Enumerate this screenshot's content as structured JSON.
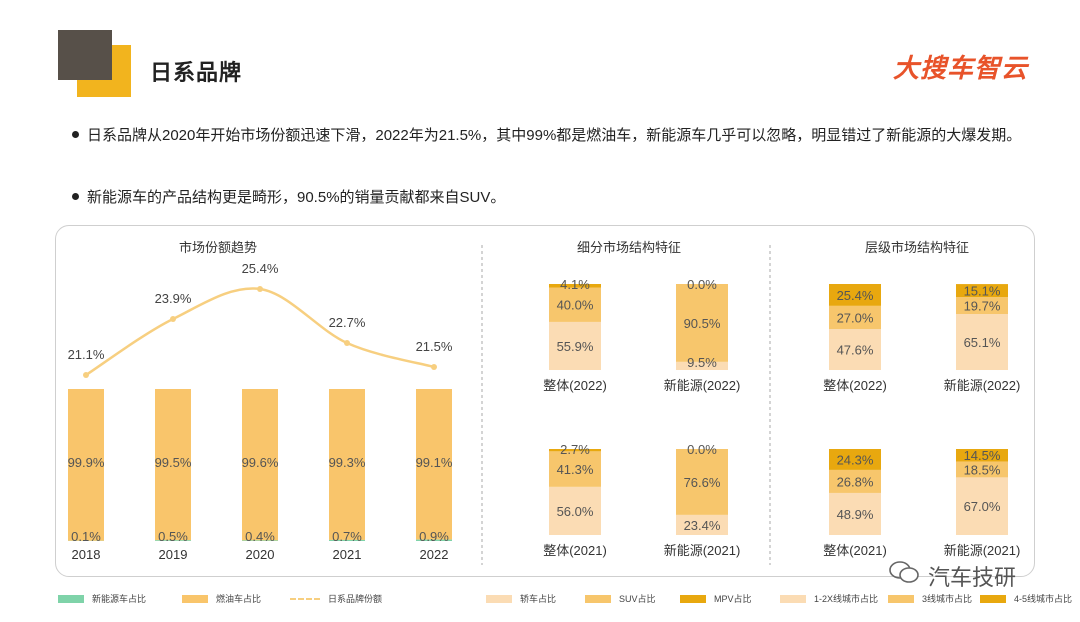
{
  "header": {
    "title": "日系品牌",
    "brand": "大搜车智云"
  },
  "bullets": [
    "日系品牌从2020年开始市场份额迅速下滑，2022年为21.5%，其中99%都是燃油车，新能源车几乎可以忽略，明显错过了新能源的大爆发期。",
    "新能源车的产品结构更是畸形，90.5%的销量贡献都来自SUV。"
  ],
  "colors": {
    "fuel": "#f9c56b",
    "nev": "#7fd3a9",
    "share_line": "#f7cf80",
    "sedan": "#fbdcb4",
    "suv": "#f7c66c",
    "mpv": "#e8a80f",
    "tier12": "#fbdcb4",
    "tier3": "#f7c66c",
    "tier45": "#e8a80f"
  },
  "chart_data": [
    {
      "type": "bar",
      "title": "市场份额趋势",
      "categories": [
        "2018",
        "2019",
        "2020",
        "2021",
        "2022"
      ],
      "series": [
        {
          "name": "新能源车占比",
          "values": [
            0.1,
            0.5,
            0.4,
            0.7,
            0.9
          ],
          "labels": [
            "0.1%",
            "0.5%",
            "0.4%",
            "0.7%",
            "0.9%"
          ]
        },
        {
          "name": "燃油车占比",
          "values": [
            99.9,
            99.5,
            99.6,
            99.3,
            99.1
          ],
          "labels": [
            "99.9%",
            "99.5%",
            "99.6%",
            "99.3%",
            "99.1%"
          ]
        },
        {
          "name": "日系品牌份额",
          "type": "line",
          "values": [
            21.1,
            23.9,
            25.4,
            22.7,
            21.5
          ],
          "labels": [
            "21.1%",
            "23.9%",
            "25.4%",
            "22.7%",
            "21.5%"
          ]
        }
      ]
    },
    {
      "type": "bar",
      "stacked": true,
      "title": "细分市场结构特征",
      "categories": [
        "整体(2022)",
        "新能源(2022)",
        "整体(2021)",
        "新能源(2021)"
      ],
      "series": [
        {
          "name": "轿车占比",
          "values": [
            55.9,
            9.5,
            56.0,
            23.4
          ],
          "labels": [
            "55.9%",
            "9.5%",
            "56.0%",
            "23.4%"
          ]
        },
        {
          "name": "SUV占比",
          "values": [
            40.0,
            90.5,
            41.3,
            76.6
          ],
          "labels": [
            "40.0%",
            "90.5%",
            "41.3%",
            "76.6%"
          ]
        },
        {
          "name": "MPV占比",
          "values": [
            4.1,
            0.0,
            2.7,
            0.0
          ],
          "labels": [
            "4.1%",
            "0.0%",
            "2.7%",
            "0.0%"
          ]
        }
      ]
    },
    {
      "type": "bar",
      "stacked": true,
      "title": "层级市场结构特征",
      "categories": [
        "整体(2022)",
        "新能源(2022)",
        "整体(2021)",
        "新能源(2021)"
      ],
      "series": [
        {
          "name": "1-2X线城市占比",
          "values": [
            47.6,
            65.1,
            48.9,
            67.0
          ],
          "labels": [
            "47.6%",
            "65.1%",
            "48.9%",
            "67.0%"
          ]
        },
        {
          "name": "3线城市占比",
          "values": [
            27.0,
            19.7,
            26.8,
            18.5
          ],
          "labels": [
            "27.0%",
            "19.7%",
            "26.8%",
            "18.5%"
          ]
        },
        {
          "name": "4-5线城市占比",
          "values": [
            25.4,
            15.1,
            24.3,
            14.5
          ],
          "labels": [
            "25.4%",
            "15.1%",
            "24.3%",
            "14.5%"
          ]
        }
      ]
    }
  ],
  "legend_left": [
    "新能源车占比",
    "燃油车占比",
    "日系品牌份额"
  ],
  "legend_right": [
    "轿车占比",
    "SUV占比",
    "MPV占比",
    "1-2X线城市占比",
    "3线城市占比",
    "4-5线城市占比"
  ],
  "footer": {
    "account": "汽车技研"
  }
}
